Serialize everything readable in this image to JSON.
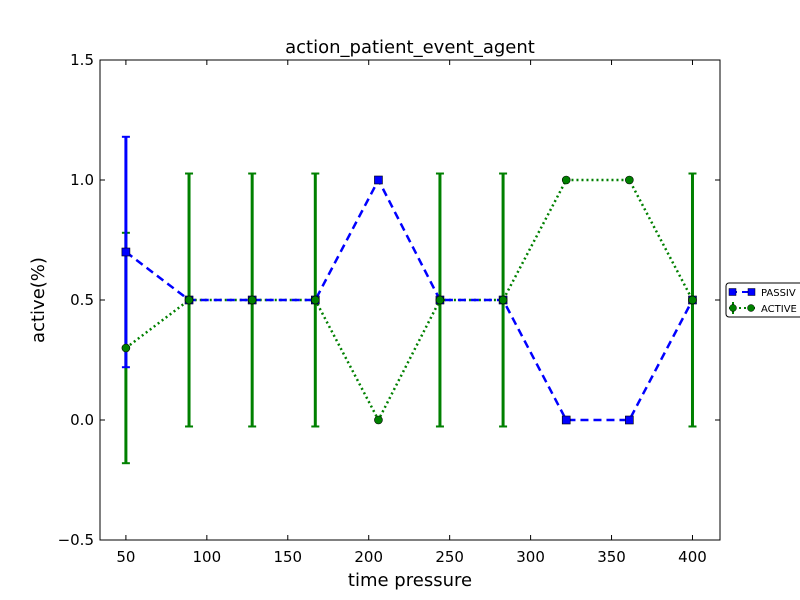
{
  "chart_data": {
    "type": "line",
    "title": "action_patient_event_agent",
    "xlabel": "time pressure",
    "ylabel": "active(%)",
    "xlim": [
      34,
      417
    ],
    "ylim": [
      -0.5,
      1.5
    ],
    "x_ticks": [
      50,
      100,
      150,
      200,
      250,
      300,
      350,
      400
    ],
    "y_ticks": [
      -0.5,
      0.0,
      0.5,
      1.0,
      1.5
    ],
    "y_tick_labels": [
      "−0.5",
      "0.0",
      "0.5",
      "1.0",
      "1.5"
    ],
    "grid": false,
    "legend_position": "right, outside plot (clipped)",
    "series": [
      {
        "name": "PASSIV",
        "color": "#0000ff",
        "linestyle": "dashed",
        "marker": "square",
        "x": [
          50,
          89,
          128,
          167,
          206,
          244,
          283,
          322,
          361,
          400
        ],
        "y": [
          0.7,
          0.5,
          0.5,
          0.5,
          1.0,
          0.5,
          0.5,
          0.0,
          0.0,
          0.5
        ],
        "err": [
          0.48,
          0,
          0,
          0,
          0,
          0,
          0,
          0,
          0,
          0
        ]
      },
      {
        "name": "ACTIVE",
        "color": "#008000",
        "linestyle": "dotted",
        "marker": "circle",
        "x": [
          50,
          89,
          128,
          167,
          206,
          244,
          283,
          322,
          361,
          400
        ],
        "y": [
          0.3,
          0.5,
          0.5,
          0.5,
          0.0,
          0.5,
          0.5,
          1.0,
          1.0,
          0.5
        ],
        "err": [
          0.48,
          0.527,
          0.527,
          0.527,
          0,
          0.527,
          0.527,
          0,
          0,
          0.527
        ]
      }
    ]
  }
}
